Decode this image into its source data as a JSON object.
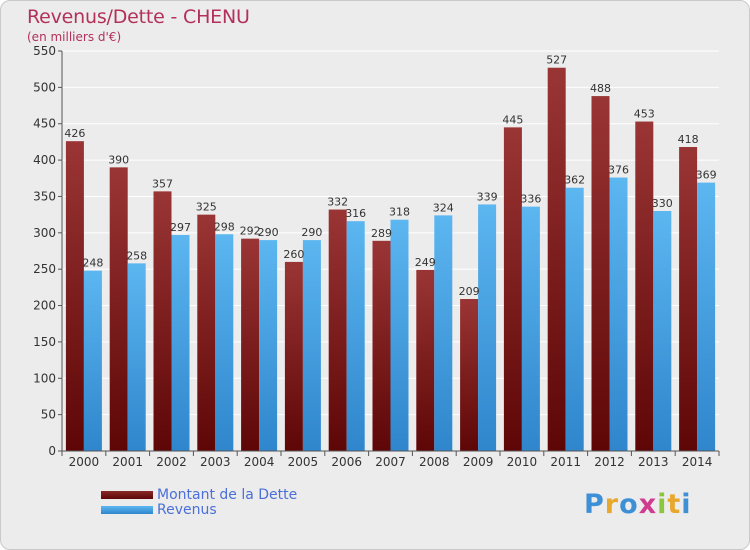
{
  "title": "Revenus/Dette - CHENU",
  "subtitle": "(en milliers d'€)",
  "chart_data": {
    "type": "bar",
    "title": "Revenus/Dette - CHENU",
    "subtitle": "(en milliers d'€)",
    "categories": [
      "2000",
      "2001",
      "2002",
      "2003",
      "2004",
      "2005",
      "2006",
      "2007",
      "2008",
      "2009",
      "2010",
      "2011",
      "2012",
      "2013",
      "2014"
    ],
    "series": [
      {
        "name": "Montant de la Dette",
        "values": [
          426,
          390,
          357,
          325,
          292,
          260,
          332,
          289,
          249,
          209,
          445,
          527,
          488,
          453,
          418
        ],
        "color": "#7a1c1c"
      },
      {
        "name": "Revenus",
        "values": [
          248,
          258,
          297,
          298,
          290,
          290,
          316,
          318,
          324,
          339,
          336,
          362,
          376,
          330,
          369
        ],
        "color": "#3a9fe6"
      }
    ],
    "ylim": [
      0,
      550
    ],
    "yticks": [
      0,
      50,
      100,
      150,
      200,
      250,
      300,
      350,
      400,
      450,
      500,
      550
    ],
    "grid": true,
    "legend_position": "bottom-left"
  },
  "legend": [
    {
      "label": "Montant de la Dette",
      "color": "#6b0f0f"
    },
    {
      "label": "Revenus",
      "color": "#4aa8ea"
    }
  ],
  "logo": {
    "letters": [
      "P",
      "r",
      "o",
      "x",
      "i",
      "t",
      "i"
    ],
    "colors": [
      "#3d8fd6",
      "#e8a82c",
      "#3d8fd6",
      "#d03b8e",
      "#8cc63e",
      "#e8a82c",
      "#3d8fd6"
    ]
  }
}
